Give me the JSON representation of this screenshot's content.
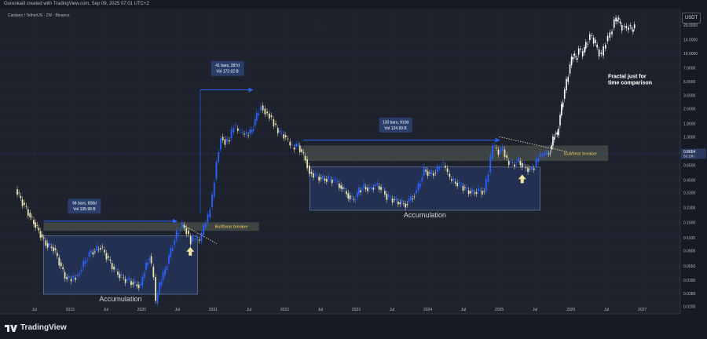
{
  "header": {
    "credit": "Ourenkaill created with TradingView.com, Sep 09, 2025 07:01 UTC+2",
    "symbol": "Cardano / TetherUS · 1W · Binance"
  },
  "currency_label": "USDT",
  "brand": "TradingView",
  "colors": {
    "background": "#1e222d",
    "up": "#2962ff",
    "down": "#e8e2b0",
    "box": "#263a6b",
    "zone": "#5a5f55",
    "arrow": "#2962ff",
    "fractal": "#ffffff",
    "price_tag": "#2a3a5e"
  },
  "chart_data": {
    "type": "line",
    "title": "",
    "xlabel": "",
    "ylabel": "",
    "yscale": "log",
    "ylim": [
      0.017,
      30
    ],
    "x_ticks": [
      {
        "label": "Jul",
        "t": 2018.5
      },
      {
        "label": "2019",
        "t": 2019.0
      },
      {
        "label": "Jul",
        "t": 2019.5
      },
      {
        "label": "2020",
        "t": 2020.0
      },
      {
        "label": "Jul",
        "t": 2020.5
      },
      {
        "label": "2021",
        "t": 2021.0
      },
      {
        "label": "Jul",
        "t": 2021.5
      },
      {
        "label": "2022",
        "t": 2022.0
      },
      {
        "label": "Jul",
        "t": 2022.5
      },
      {
        "label": "2023",
        "t": 2023.0
      },
      {
        "label": "Jul",
        "t": 2023.5
      },
      {
        "label": "2024",
        "t": 2024.0
      },
      {
        "label": "Jul",
        "t": 2024.5
      },
      {
        "label": "2025",
        "t": 2025.0
      },
      {
        "label": "Jul",
        "t": 2025.5
      },
      {
        "label": "2026",
        "t": 2026.0
      },
      {
        "label": "Jul",
        "t": 2026.5
      },
      {
        "label": "2027",
        "t": 2027.0
      }
    ],
    "y_ticks": [
      {
        "label": "20.0000",
        "v": 20
      },
      {
        "label": "14.0000",
        "v": 14
      },
      {
        "label": "10.0000",
        "v": 10
      },
      {
        "label": "7.0000",
        "v": 7
      },
      {
        "label": "5.0000",
        "v": 5
      },
      {
        "label": "3.6000",
        "v": 3.6
      },
      {
        "label": "2.6000",
        "v": 2.6
      },
      {
        "label": "1.8000",
        "v": 1.8
      },
      {
        "label": "1.3000",
        "v": 1.3
      },
      {
        "label": "0.6500",
        "v": 0.65
      },
      {
        "label": "0.4500",
        "v": 0.45
      },
      {
        "label": "0.3300",
        "v": 0.33
      },
      {
        "label": "0.2300",
        "v": 0.23
      },
      {
        "label": "0.1600",
        "v": 0.16
      },
      {
        "label": "0.1100",
        "v": 0.11
      },
      {
        "label": "0.0800",
        "v": 0.08
      },
      {
        "label": "0.0550",
        "v": 0.055
      },
      {
        "label": "0.0390",
        "v": 0.039
      },
      {
        "label": "0.0280",
        "v": 0.028
      },
      {
        "label": "0.0205",
        "v": 0.0205
      }
    ],
    "current_price": {
      "label": "0.8664",
      "sub": "5d 19h",
      "value": 0.8664
    },
    "price_series": {
      "name": "",
      "points": [
        [
          2018.25,
          0.36
        ],
        [
          2018.32,
          0.28
        ],
        [
          2018.4,
          0.22
        ],
        [
          2018.48,
          0.17
        ],
        [
          2018.55,
          0.14
        ],
        [
          2018.62,
          0.11
        ],
        [
          2018.7,
          0.09
        ],
        [
          2018.78,
          0.085
        ],
        [
          2018.86,
          0.06
        ],
        [
          2018.94,
          0.042
        ],
        [
          2019.0,
          0.04
        ],
        [
          2019.06,
          0.041
        ],
        [
          2019.12,
          0.044
        ],
        [
          2019.2,
          0.058
        ],
        [
          2019.28,
          0.075
        ],
        [
          2019.36,
          0.08
        ],
        [
          2019.44,
          0.088
        ],
        [
          2019.52,
          0.07
        ],
        [
          2019.6,
          0.054
        ],
        [
          2019.68,
          0.045
        ],
        [
          2019.76,
          0.04
        ],
        [
          2019.84,
          0.038
        ],
        [
          2019.92,
          0.035
        ],
        [
          2020.0,
          0.034
        ],
        [
          2020.05,
          0.05
        ],
        [
          2020.12,
          0.07
        ],
        [
          2020.18,
          0.042
        ],
        [
          2020.21,
          0.022
        ],
        [
          2020.26,
          0.034
        ],
        [
          2020.34,
          0.05
        ],
        [
          2020.42,
          0.08
        ],
        [
          2020.5,
          0.12
        ],
        [
          2020.58,
          0.15
        ],
        [
          2020.64,
          0.13
        ],
        [
          2020.7,
          0.1
        ],
        [
          2020.76,
          0.11
        ],
        [
          2020.82,
          0.1
        ],
        [
          2020.88,
          0.14
        ],
        [
          2020.94,
          0.18
        ],
        [
          2021.0,
          0.3
        ],
        [
          2021.06,
          0.7
        ],
        [
          2021.12,
          1.3
        ],
        [
          2021.18,
          1.15
        ],
        [
          2021.24,
          1.25
        ],
        [
          2021.3,
          1.7
        ],
        [
          2021.36,
          1.5
        ],
        [
          2021.42,
          1.4
        ],
        [
          2021.48,
          1.35
        ],
        [
          2021.55,
          1.5
        ],
        [
          2021.62,
          2.2
        ],
        [
          2021.68,
          2.8
        ],
        [
          2021.74,
          2.4
        ],
        [
          2021.8,
          2.2
        ],
        [
          2021.86,
          1.8
        ],
        [
          2021.92,
          1.45
        ],
        [
          2022.0,
          1.35
        ],
        [
          2022.06,
          1.15
        ],
        [
          2022.12,
          1.0
        ],
        [
          2022.2,
          1.05
        ],
        [
          2022.3,
          0.75
        ],
        [
          2022.36,
          0.55
        ],
        [
          2022.44,
          0.5
        ],
        [
          2022.52,
          0.47
        ],
        [
          2022.6,
          0.46
        ],
        [
          2022.7,
          0.45
        ],
        [
          2022.8,
          0.38
        ],
        [
          2022.9,
          0.31
        ],
        [
          2022.98,
          0.27
        ],
        [
          2023.05,
          0.35
        ],
        [
          2023.12,
          0.38
        ],
        [
          2023.2,
          0.36
        ],
        [
          2023.28,
          0.4
        ],
        [
          2023.36,
          0.37
        ],
        [
          2023.44,
          0.3
        ],
        [
          2023.52,
          0.28
        ],
        [
          2023.6,
          0.26
        ],
        [
          2023.7,
          0.25
        ],
        [
          2023.8,
          0.3
        ],
        [
          2023.88,
          0.38
        ],
        [
          2023.96,
          0.58
        ],
        [
          2024.04,
          0.52
        ],
        [
          2024.12,
          0.55
        ],
        [
          2024.2,
          0.68
        ],
        [
          2024.26,
          0.6
        ],
        [
          2024.32,
          0.46
        ],
        [
          2024.4,
          0.42
        ],
        [
          2024.48,
          0.39
        ],
        [
          2024.56,
          0.35
        ],
        [
          2024.64,
          0.33
        ],
        [
          2024.72,
          0.35
        ],
        [
          2024.8,
          0.34
        ],
        [
          2024.86,
          0.55
        ],
        [
          2024.92,
          1.05
        ],
        [
          2025.0,
          0.9
        ],
        [
          2025.06,
          0.95
        ],
        [
          2025.12,
          0.72
        ],
        [
          2025.2,
          0.66
        ],
        [
          2025.28,
          0.72
        ],
        [
          2025.36,
          0.62
        ],
        [
          2025.44,
          0.58
        ],
        [
          2025.5,
          0.62
        ],
        [
          2025.56,
          0.8
        ],
        [
          2025.62,
          0.82
        ],
        [
          2025.68,
          0.86
        ],
        [
          2025.7,
          0.8664
        ]
      ]
    },
    "fractal_series": {
      "name": "",
      "points": [
        [
          2025.7,
          0.8664
        ],
        [
          2025.74,
          1.05
        ],
        [
          2025.78,
          1.4
        ],
        [
          2025.82,
          1.35
        ],
        [
          2025.86,
          2.2
        ],
        [
          2025.9,
          3.3
        ],
        [
          2025.95,
          5.0
        ],
        [
          2026.0,
          7.5
        ],
        [
          2026.04,
          10.0
        ],
        [
          2026.08,
          8.6
        ],
        [
          2026.12,
          11.0
        ],
        [
          2026.18,
          10.2
        ],
        [
          2026.22,
          12.5
        ],
        [
          2026.28,
          15.5
        ],
        [
          2026.33,
          14.0
        ],
        [
          2026.38,
          11.0
        ],
        [
          2026.44,
          9.5
        ],
        [
          2026.5,
          13.5
        ],
        [
          2026.56,
          16.0
        ],
        [
          2026.62,
          22.0
        ],
        [
          2026.66,
          24.0
        ],
        [
          2026.7,
          20.0
        ],
        [
          2026.76,
          18.5
        ],
        [
          2026.82,
          19.5
        ],
        [
          2026.86,
          18.0
        ],
        [
          2026.9,
          19.2
        ]
      ]
    },
    "annotations": {
      "box1": {
        "t0": 2018.63,
        "t1": 2020.78,
        "v0": 0.0275,
        "v1": 0.115,
        "label": "Accumulation"
      },
      "box2": {
        "t0": 2022.35,
        "t1": 2025.57,
        "v0": 0.215,
        "v1": 0.62,
        "label": "Accumulation"
      },
      "zone1": {
        "t0": 2018.63,
        "t1": 2021.64,
        "v0": 0.13,
        "v1": 0.16,
        "label": "Bull/bear breaker"
      },
      "zone2": {
        "t0": 2022.26,
        "t1": 2026.52,
        "v0": 0.72,
        "v1": 1.05,
        "label": "Bull/bear breaker"
      },
      "measure1": {
        "t0": 2018.63,
        "t1": 2020.49,
        "v": 0.165,
        "label_lines": [
          "94 bars, 658d",
          "Vol 135.99 B"
        ],
        "label_t": 2019.2,
        "label_v": 0.24
      },
      "measure2": {
        "t0": 2020.82,
        "t1": 2021.55,
        "v": 4.1,
        "label_lines": [
          "41 bars, 287d",
          "Vol 172.02 B"
        ],
        "label_t": 2021.2,
        "label_v": 7.0
      },
      "measure3": {
        "t0": 2022.26,
        "t1": 2025.0,
        "v": 1.2,
        "label_lines": [
          "130 bars, 910d",
          "Vol 124.99 B"
        ],
        "label_t": 2023.55,
        "label_v": 1.75
      },
      "trend1": {
        "t0": 2020.58,
        "v0": 0.15,
        "t1": 2021.05,
        "v1": 0.095
      },
      "trend2": {
        "t0": 2025.0,
        "v0": 1.3,
        "t1": 2025.95,
        "v1": 0.9
      },
      "up_arrow1": {
        "t": 2020.68,
        "v": 0.078
      },
      "up_arrow2": {
        "t": 2025.32,
        "v": 0.46
      },
      "fractal_note": {
        "lines": [
          "Fractal just for",
          "time comparison"
        ],
        "t": 2026.52,
        "v": 5.5
      }
    }
  }
}
